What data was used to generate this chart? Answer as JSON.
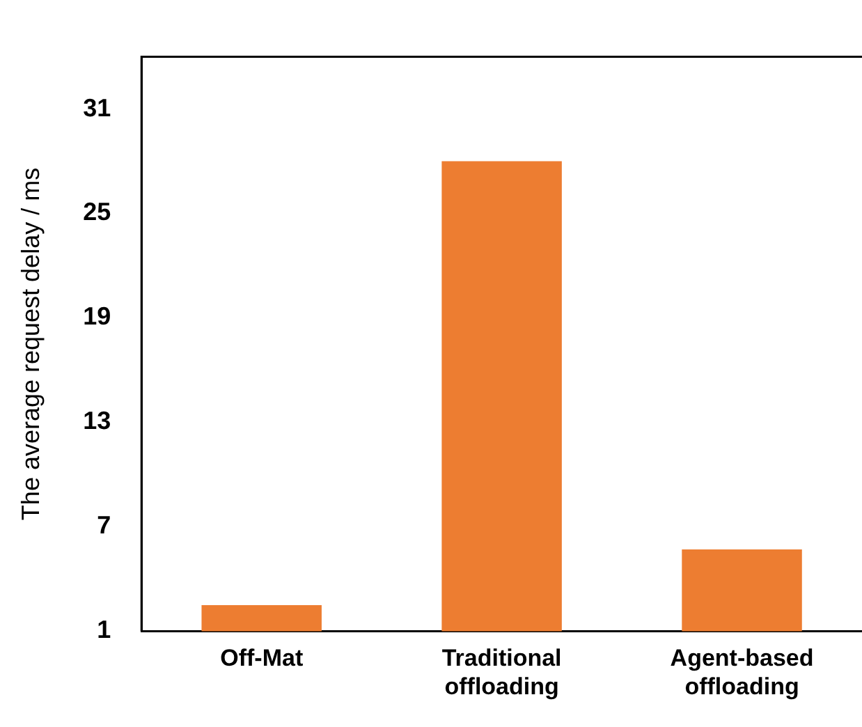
{
  "chart_data": {
    "type": "bar",
    "ylabel": "The average request delay / ms",
    "categories": [
      "Off-Mat",
      "Traditional offloading",
      "Agent-based offloading"
    ],
    "values": [
      2.5,
      28.0,
      5.7
    ],
    "color": "#ed7d31",
    "ylim": [
      1,
      34
    ],
    "yticks": [
      1,
      7,
      13,
      19,
      25,
      31
    ],
    "grid": false,
    "legend": false
  }
}
